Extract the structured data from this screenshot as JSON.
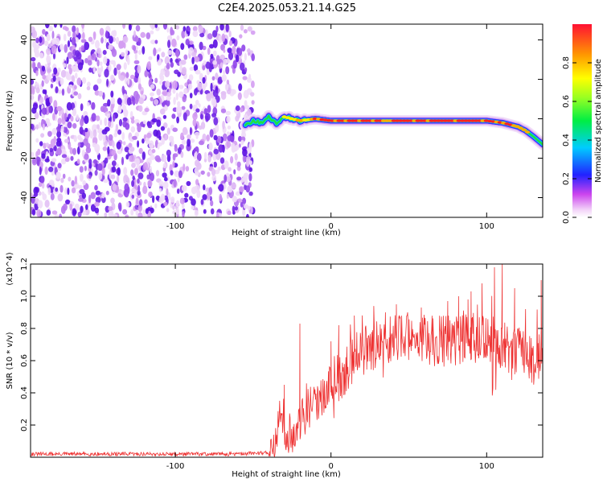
{
  "title": "C2E4.2025.053.21.14.G25",
  "chart_data": [
    {
      "type": "heatmap",
      "xlabel": "Height of straight line (km)",
      "ylabel": "Frequency (Hz)",
      "xlim": [
        -193,
        136
      ],
      "ylim": [
        -50,
        48
      ],
      "xticks": [
        -100,
        0,
        100
      ],
      "yticks": [
        -40,
        -20,
        0,
        20,
        40
      ],
      "grid": false,
      "colorbar": {
        "label": "Normalized spectral amplitude",
        "range": [
          0.0,
          1.0
        ],
        "ticks": [
          "0.0",
          "0.2",
          "0.4",
          "0.6",
          "0.8"
        ],
        "colormap": "rainbow (violet-blue-cyan-green-yellow-red)"
      },
      "features": [
        {
          "region": "x from -193 to -50 km",
          "description": "broadband noise across all frequencies, amplitude mostly < 0.3"
        },
        {
          "region": "x from -50 to 136 km",
          "description": "narrow ridge near 0 Hz, amplitude up to 1.0"
        }
      ],
      "ridge": {
        "x": [
          -55,
          -50,
          -45,
          -40,
          -35,
          -30,
          -25,
          -20,
          -10,
          0,
          20,
          40,
          60,
          80,
          100,
          110,
          115,
          120,
          125,
          130,
          136
        ],
        "y": [
          -3,
          -1,
          -2,
          1,
          -2,
          1,
          0,
          -1,
          0,
          -1,
          -1,
          -1,
          -1,
          -1,
          -1,
          -2,
          -3,
          -4,
          -6,
          -9,
          -13
        ]
      }
    },
    {
      "type": "line",
      "xlabel": "Height of straight line (km)",
      "ylabel": "SNR (10 * v/v)",
      "y_multiplier": "(x10^4)",
      "xlim": [
        -193,
        136
      ],
      "ylim": [
        0,
        1.2
      ],
      "xticks": [
        -100,
        0,
        100
      ],
      "yticks": [
        0.2,
        0.4,
        0.6,
        0.8,
        1.0,
        1.2
      ],
      "grid": false,
      "series": [
        {
          "color": "#ee3333",
          "x": [
            -193,
            -150,
            -100,
            -60,
            -40,
            -37,
            -35,
            -33,
            -30,
            -28,
            -25,
            -22,
            -20,
            -18,
            -15,
            -10,
            -5,
            0,
            5,
            10,
            15,
            20,
            30,
            40,
            50,
            60,
            70,
            80,
            90,
            100,
            105,
            110,
            115,
            120,
            125,
            130,
            136
          ],
          "y": [
            0.02,
            0.02,
            0.02,
            0.02,
            0.03,
            0.05,
            0.12,
            0.28,
            0.15,
            0.12,
            0.1,
            0.18,
            0.22,
            0.25,
            0.3,
            0.35,
            0.38,
            0.45,
            0.5,
            0.55,
            0.62,
            0.65,
            0.7,
            0.72,
            0.75,
            0.73,
            0.72,
            0.73,
            0.74,
            0.72,
            0.75,
            0.7,
            0.65,
            0.68,
            0.62,
            0.6,
            0.65
          ],
          "peaks": [
            {
              "x": -30,
              "y": 0.45
            },
            {
              "x": -20,
              "y": 0.83
            },
            {
              "x": 0,
              "y": 0.72
            },
            {
              "x": 5,
              "y": 0.82
            },
            {
              "x": 15,
              "y": 0.88
            },
            {
              "x": 35,
              "y": 0.9
            },
            {
              "x": 42,
              "y": 0.95
            },
            {
              "x": 58,
              "y": 0.93
            },
            {
              "x": 75,
              "y": 0.97
            },
            {
              "x": 82,
              "y": 1.0
            },
            {
              "x": 88,
              "y": 0.98
            },
            {
              "x": 90,
              "y": 1.03
            },
            {
              "x": 97,
              "y": 1.08
            },
            {
              "x": 105,
              "y": 1.18
            },
            {
              "x": 110,
              "y": 1.2
            },
            {
              "x": 118,
              "y": 1.05
            },
            {
              "x": 125,
              "y": 0.92
            },
            {
              "x": 135,
              "y": 1.1
            }
          ]
        }
      ]
    }
  ]
}
